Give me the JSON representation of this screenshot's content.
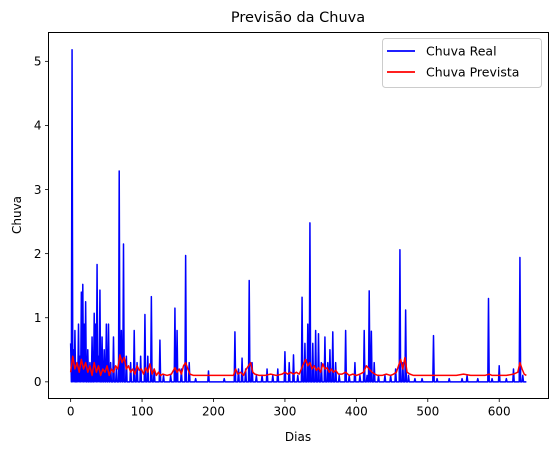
{
  "chart_data": {
    "type": "line",
    "title": "Previsão da Chuva",
    "xlabel": "Dias",
    "ylabel": "Chuva",
    "xlim": [
      -31,
      669
    ],
    "ylim": [
      -0.26,
      5.45
    ],
    "xticks": [
      0,
      100,
      200,
      300,
      400,
      500,
      600
    ],
    "yticks": [
      0,
      1,
      2,
      3,
      4,
      5
    ],
    "grid": false,
    "legend_position": "top-right",
    "n_days": 639,
    "series": [
      {
        "name": "Chuva Real",
        "color": "#0000ff",
        "baseline": 0,
        "peaks": [
          [
            0,
            0.6
          ],
          [
            2,
            5.18
          ],
          [
            4,
            0.5
          ],
          [
            6,
            0.8
          ],
          [
            9,
            0.3
          ],
          [
            11,
            0.9
          ],
          [
            13,
            0.4
          ],
          [
            15,
            1.4
          ],
          [
            17,
            1.52
          ],
          [
            19,
            0.9
          ],
          [
            21,
            1.25
          ],
          [
            24,
            0.5
          ],
          [
            27,
            0.3
          ],
          [
            30,
            0.7
          ],
          [
            33,
            1.07
          ],
          [
            35,
            0.9
          ],
          [
            37,
            1.83
          ],
          [
            39,
            0.4
          ],
          [
            41,
            1.43
          ],
          [
            44,
            0.7
          ],
          [
            47,
            0.5
          ],
          [
            50,
            0.9
          ],
          [
            53,
            0.9
          ],
          [
            56,
            0.3
          ],
          [
            60,
            0.7
          ],
          [
            64,
            0.2
          ],
          [
            68,
            3.29
          ],
          [
            71,
            0.8
          ],
          [
            74,
            2.15
          ],
          [
            78,
            0.4
          ],
          [
            84,
            0.3
          ],
          [
            89,
            0.8
          ],
          [
            93,
            0.3
          ],
          [
            98,
            0.4
          ],
          [
            104,
            1.05
          ],
          [
            108,
            0.4
          ],
          [
            113,
            1.33
          ],
          [
            117,
            0.2
          ],
          [
            125,
            0.65
          ],
          [
            130,
            0.1
          ],
          [
            140,
            0.1
          ],
          [
            146,
            1.15
          ],
          [
            149,
            0.8
          ],
          [
            155,
            0.2
          ],
          [
            161,
            1.97
          ],
          [
            166,
            0.3
          ],
          [
            175,
            0.05
          ],
          [
            193,
            0.17
          ],
          [
            215,
            0.05
          ],
          [
            230,
            0.78
          ],
          [
            235,
            0.2
          ],
          [
            240,
            0.37
          ],
          [
            245,
            0.2
          ],
          [
            250,
            1.58
          ],
          [
            254,
            0.3
          ],
          [
            260,
            0.1
          ],
          [
            268,
            0.1
          ],
          [
            275,
            0.2
          ],
          [
            283,
            0.1
          ],
          [
            290,
            0.2
          ],
          [
            300,
            0.47
          ],
          [
            306,
            0.3
          ],
          [
            312,
            0.42
          ],
          [
            318,
            0.1
          ],
          [
            324,
            1.32
          ],
          [
            328,
            0.6
          ],
          [
            332,
            0.9
          ],
          [
            335,
            2.48
          ],
          [
            339,
            0.6
          ],
          [
            343,
            0.8
          ],
          [
            347,
            0.75
          ],
          [
            351,
            0.3
          ],
          [
            356,
            0.7
          ],
          [
            360,
            0.3
          ],
          [
            363,
            0.5
          ],
          [
            367,
            0.78
          ],
          [
            371,
            0.3
          ],
          [
            376,
            0.1
          ],
          [
            385,
            0.8
          ],
          [
            390,
            0.1
          ],
          [
            398,
            0.3
          ],
          [
            405,
            0.1
          ],
          [
            411,
            0.8
          ],
          [
            415,
            0.1
          ],
          [
            418,
            1.42
          ],
          [
            421,
            0.79
          ],
          [
            425,
            0.3
          ],
          [
            431,
            0.1
          ],
          [
            440,
            0.1
          ],
          [
            448,
            0.1
          ],
          [
            455,
            0.2
          ],
          [
            461,
            2.06
          ],
          [
            465,
            0.3
          ],
          [
            469,
            1.12
          ],
          [
            473,
            0.1
          ],
          [
            482,
            0.05
          ],
          [
            492,
            0.05
          ],
          [
            508,
            0.72
          ],
          [
            513,
            0.05
          ],
          [
            530,
            0.05
          ],
          [
            548,
            0.05
          ],
          [
            555,
            0.1
          ],
          [
            570,
            0.05
          ],
          [
            585,
            1.3
          ],
          [
            590,
            0.05
          ],
          [
            600,
            0.25
          ],
          [
            610,
            0.05
          ],
          [
            620,
            0.2
          ],
          [
            629,
            1.94
          ],
          [
            633,
            0.1
          ]
        ]
      },
      {
        "name": "Chuva Prevista",
        "color": "#ff0000",
        "points": [
          [
            0,
            0.15
          ],
          [
            3,
            0.4
          ],
          [
            6,
            0.2
          ],
          [
            9,
            0.3
          ],
          [
            12,
            0.15
          ],
          [
            15,
            0.35
          ],
          [
            18,
            0.2
          ],
          [
            21,
            0.3
          ],
          [
            24,
            0.15
          ],
          [
            27,
            0.25
          ],
          [
            30,
            0.1
          ],
          [
            33,
            0.3
          ],
          [
            36,
            0.15
          ],
          [
            39,
            0.25
          ],
          [
            42,
            0.1
          ],
          [
            45,
            0.2
          ],
          [
            48,
            0.15
          ],
          [
            51,
            0.25
          ],
          [
            54,
            0.1
          ],
          [
            57,
            0.2
          ],
          [
            60,
            0.15
          ],
          [
            63,
            0.25
          ],
          [
            66,
            0.2
          ],
          [
            69,
            0.42
          ],
          [
            72,
            0.3
          ],
          [
            75,
            0.38
          ],
          [
            78,
            0.2
          ],
          [
            81,
            0.25
          ],
          [
            84,
            0.15
          ],
          [
            87,
            0.2
          ],
          [
            90,
            0.12
          ],
          [
            93,
            0.25
          ],
          [
            96,
            0.18
          ],
          [
            99,
            0.2
          ],
          [
            102,
            0.12
          ],
          [
            105,
            0.22
          ],
          [
            108,
            0.15
          ],
          [
            111,
            0.28
          ],
          [
            114,
            0.12
          ],
          [
            117,
            0.2
          ],
          [
            120,
            0.1
          ],
          [
            123,
            0.15
          ],
          [
            126,
            0.1
          ],
          [
            129,
            0.12
          ],
          [
            135,
            0.1
          ],
          [
            141,
            0.12
          ],
          [
            146,
            0.22
          ],
          [
            149,
            0.15
          ],
          [
            152,
            0.2
          ],
          [
            155,
            0.12
          ],
          [
            158,
            0.25
          ],
          [
            161,
            0.3
          ],
          [
            164,
            0.2
          ],
          [
            167,
            0.12
          ],
          [
            172,
            0.1
          ],
          [
            180,
            0.1
          ],
          [
            190,
            0.1
          ],
          [
            200,
            0.1
          ],
          [
            210,
            0.1
          ],
          [
            220,
            0.1
          ],
          [
            228,
            0.1
          ],
          [
            231,
            0.2
          ],
          [
            234,
            0.12
          ],
          [
            238,
            0.15
          ],
          [
            242,
            0.1
          ],
          [
            246,
            0.2
          ],
          [
            249,
            0.25
          ],
          [
            252,
            0.3
          ],
          [
            255,
            0.15
          ],
          [
            258,
            0.12
          ],
          [
            264,
            0.1
          ],
          [
            272,
            0.1
          ],
          [
            280,
            0.12
          ],
          [
            288,
            0.1
          ],
          [
            296,
            0.12
          ],
          [
            300,
            0.15
          ],
          [
            304,
            0.12
          ],
          [
            308,
            0.15
          ],
          [
            312,
            0.12
          ],
          [
            316,
            0.15
          ],
          [
            320,
            0.12
          ],
          [
            323,
            0.2
          ],
          [
            326,
            0.28
          ],
          [
            329,
            0.35
          ],
          [
            332,
            0.25
          ],
          [
            335,
            0.3
          ],
          [
            338,
            0.2
          ],
          [
            341,
            0.25
          ],
          [
            344,
            0.18
          ],
          [
            347,
            0.22
          ],
          [
            350,
            0.15
          ],
          [
            353,
            0.28
          ],
          [
            356,
            0.2
          ],
          [
            359,
            0.22
          ],
          [
            362,
            0.15
          ],
          [
            365,
            0.2
          ],
          [
            368,
            0.15
          ],
          [
            371,
            0.18
          ],
          [
            375,
            0.12
          ],
          [
            380,
            0.12
          ],
          [
            385,
            0.15
          ],
          [
            390,
            0.1
          ],
          [
            395,
            0.12
          ],
          [
            400,
            0.1
          ],
          [
            405,
            0.12
          ],
          [
            410,
            0.15
          ],
          [
            414,
            0.25
          ],
          [
            418,
            0.2
          ],
          [
            422,
            0.15
          ],
          [
            426,
            0.12
          ],
          [
            430,
            0.1
          ],
          [
            436,
            0.1
          ],
          [
            442,
            0.12
          ],
          [
            448,
            0.1
          ],
          [
            452,
            0.12
          ],
          [
            456,
            0.15
          ],
          [
            459,
            0.25
          ],
          [
            462,
            0.35
          ],
          [
            465,
            0.2
          ],
          [
            468,
            0.38
          ],
          [
            471,
            0.15
          ],
          [
            475,
            0.12
          ],
          [
            480,
            0.1
          ],
          [
            490,
            0.1
          ],
          [
            500,
            0.1
          ],
          [
            510,
            0.1
          ],
          [
            520,
            0.1
          ],
          [
            530,
            0.1
          ],
          [
            540,
            0.1
          ],
          [
            550,
            0.12
          ],
          [
            560,
            0.1
          ],
          [
            570,
            0.1
          ],
          [
            580,
            0.1
          ],
          [
            586,
            0.12
          ],
          [
            590,
            0.1
          ],
          [
            600,
            0.1
          ],
          [
            610,
            0.1
          ],
          [
            620,
            0.12
          ],
          [
            626,
            0.15
          ],
          [
            629,
            0.3
          ],
          [
            632,
            0.2
          ],
          [
            635,
            0.12
          ],
          [
            638,
            0.1
          ]
        ]
      }
    ]
  }
}
